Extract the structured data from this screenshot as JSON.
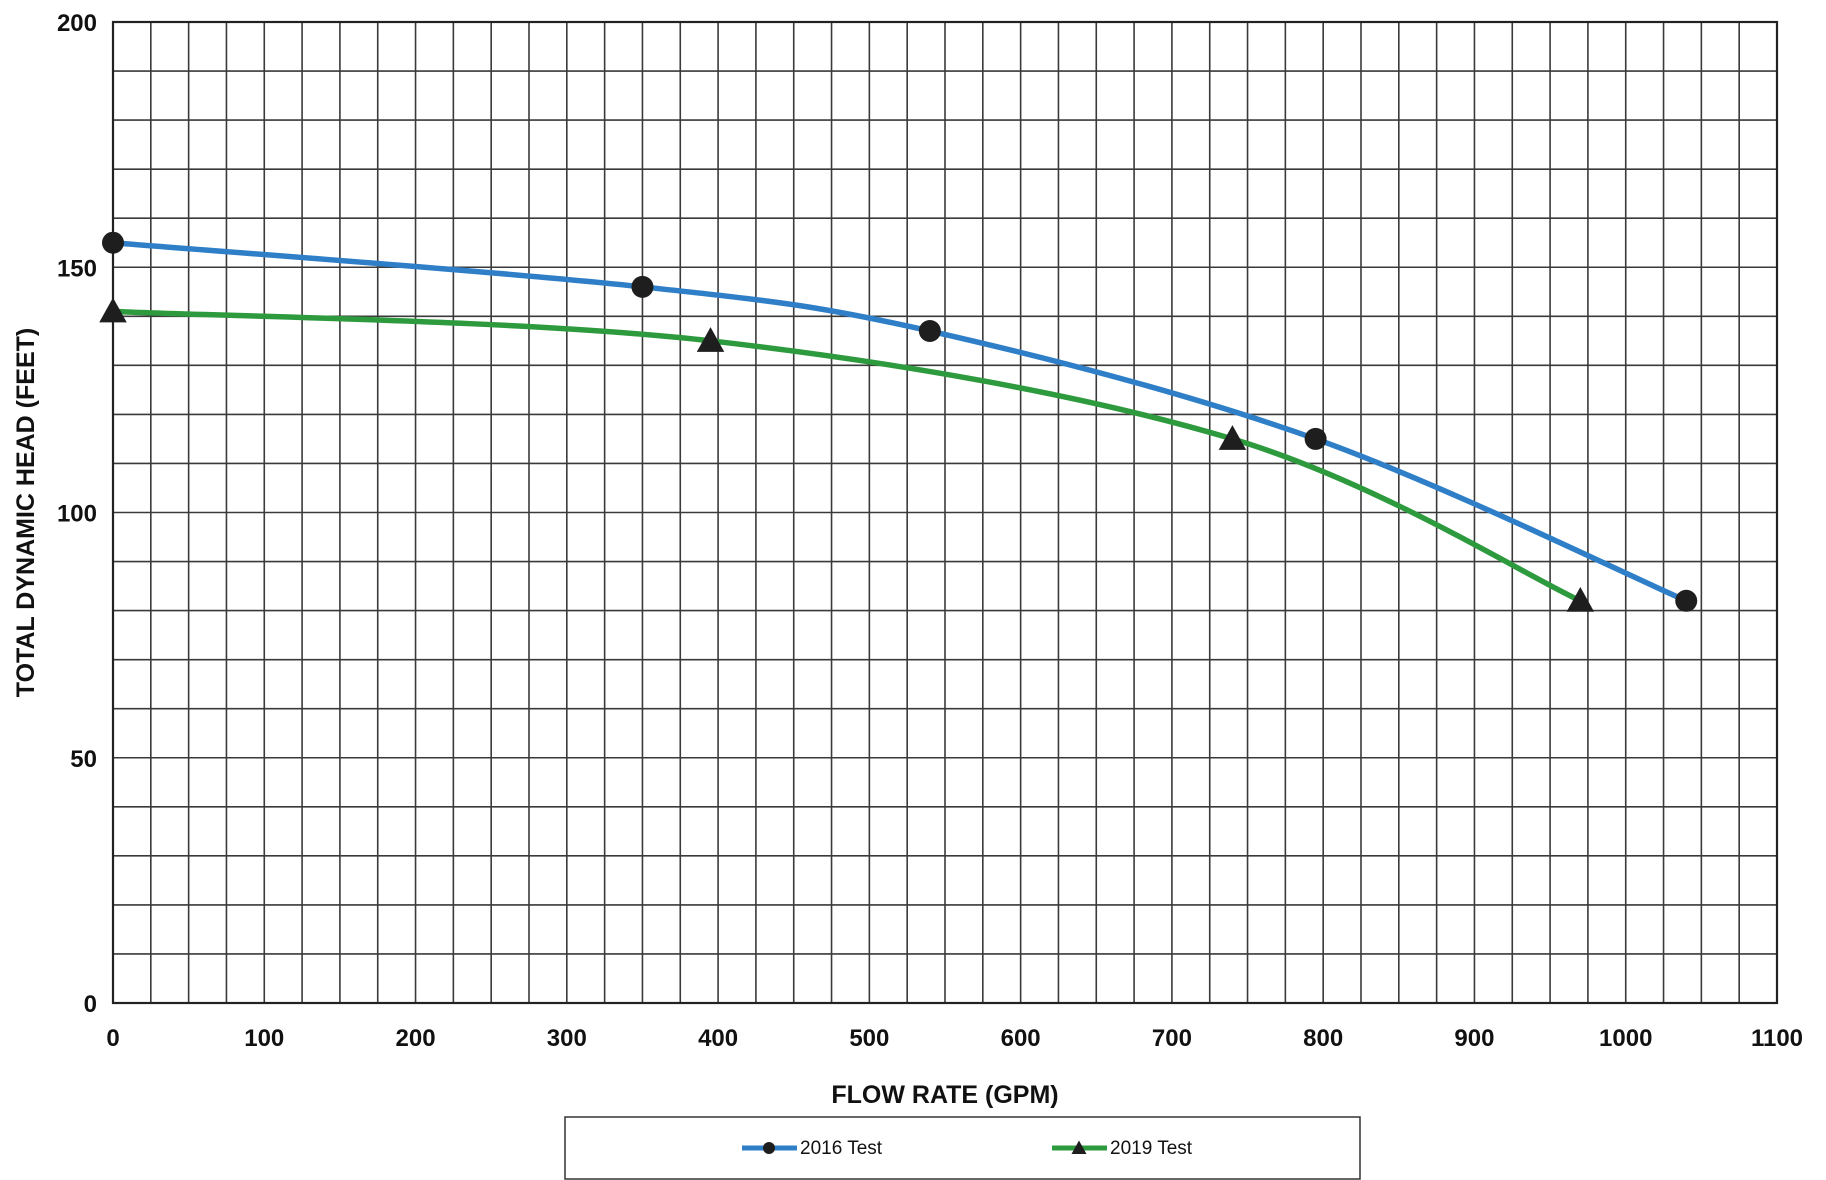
{
  "chart_data": {
    "type": "line",
    "xlabel": "FLOW RATE (GPM)",
    "ylabel": "TOTAL DYNAMIC HEAD (FEET)",
    "xlim": [
      0,
      1100
    ],
    "ylim": [
      0,
      200
    ],
    "x_ticks": [
      "0",
      "100",
      "200",
      "300",
      "400",
      "500",
      "600",
      "700",
      "800",
      "900",
      "1000",
      "1100"
    ],
    "y_ticks": [
      "0",
      "50",
      "100",
      "150",
      "200"
    ],
    "grid": true,
    "legend": "bottom",
    "series": [
      {
        "name": "2016 Test",
        "color": "#2f7fc8",
        "marker": "circle",
        "points": [
          {
            "x": 0,
            "y": 155
          },
          {
            "x": 350,
            "y": 146
          },
          {
            "x": 540,
            "y": 137
          },
          {
            "x": 795,
            "y": 115
          },
          {
            "x": 1040,
            "y": 82
          }
        ]
      },
      {
        "name": "2019 Test",
        "color": "#2e9a3e",
        "marker": "triangle",
        "points": [
          {
            "x": 0,
            "y": 141
          },
          {
            "x": 395,
            "y": 135
          },
          {
            "x": 740,
            "y": 115
          },
          {
            "x": 970,
            "y": 82
          }
        ]
      }
    ]
  }
}
